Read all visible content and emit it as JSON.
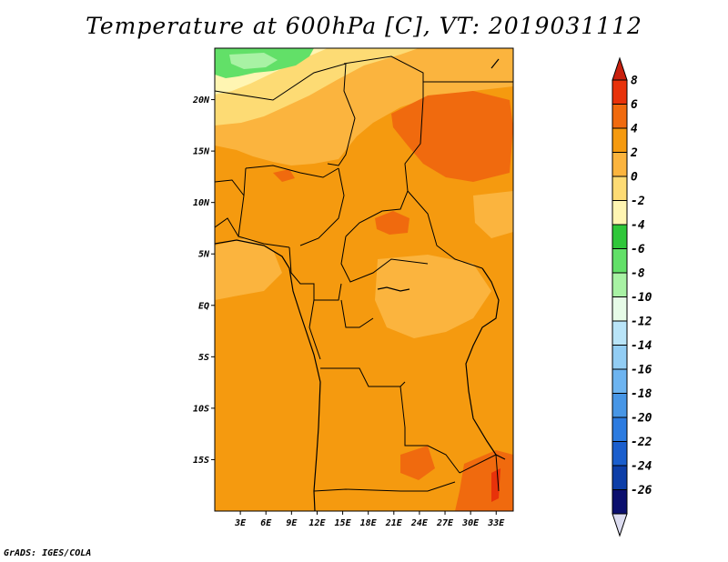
{
  "title": "Temperature at 600hPa [C], VT: 2019031112",
  "credit": "GrADS: IGES/COLA",
  "map": {
    "lon_range": [
      0,
      35
    ],
    "lat_range": [
      -20,
      25
    ],
    "lon_ticks": [
      "3E",
      "6E",
      "9E",
      "12E",
      "15E",
      "18E",
      "21E",
      "24E",
      "27E",
      "30E",
      "33E"
    ],
    "lat_ticks": [
      "20N",
      "15N",
      "10N",
      "5N",
      "EQ",
      "5S",
      "10S",
      "15S"
    ]
  },
  "colorbar": {
    "labels": [
      "8",
      "6",
      "4",
      "2",
      "0",
      "-2",
      "-4",
      "-6",
      "-8",
      "-10",
      "-12",
      "-14",
      "-16",
      "-18",
      "-20",
      "-22",
      "-24",
      "-26"
    ],
    "colors": [
      "#e8320a",
      "#f06a0e",
      "#f59a0f",
      "#fbb43e",
      "#fddb74",
      "#fff5b2",
      "#2fc73a",
      "#62e068",
      "#a8f2a4",
      "#e6fbe7",
      "#b9e4f8",
      "#92cdf4",
      "#6db4f0",
      "#4796e6",
      "#2c7be0",
      "#1a5ecd",
      "#0d3ea8",
      "#0b0f6e"
    ],
    "top_arrow_color": "#c8200e",
    "bottom_arrow_color": "#dcdcf0"
  }
}
